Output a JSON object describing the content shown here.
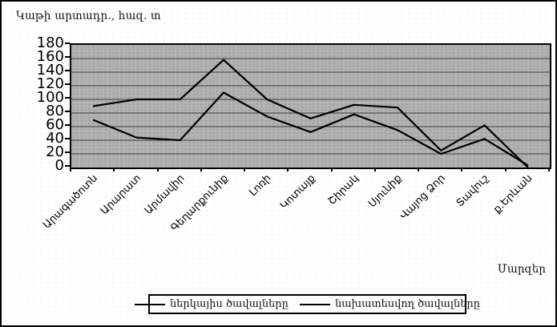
{
  "chart_data": {
    "type": "line",
    "title": "Կաթի արտադր., հազ. տ",
    "xlabel": "Մարզեր",
    "categories": [
      "Արագածոտն",
      "Արարատ",
      "Արմավիր",
      "Գեղարքունիք",
      "Լոռի",
      "Կոտայք",
      "Շիրակ",
      "Սյունիք",
      "Վայոց Ձոր",
      "Տավուշ",
      "ք.Երևան"
    ],
    "series": [
      {
        "name": "ներկայիս ծավալները",
        "values": [
          70,
          44,
          40,
          110,
          75,
          52,
          78,
          55,
          20,
          42,
          3
        ],
        "color": "#000000"
      },
      {
        "name": "նախատեսվող ծավալները",
        "values": [
          90,
          100,
          100,
          158,
          100,
          72,
          92,
          88,
          25,
          62,
          0
        ],
        "color": "#000000"
      }
    ],
    "ylim": [
      0,
      180
    ],
    "ytick_step": 20,
    "grid": true,
    "legend_position": "bottom",
    "plot_bg": "#b0b0b0",
    "line_color": "#000000"
  }
}
